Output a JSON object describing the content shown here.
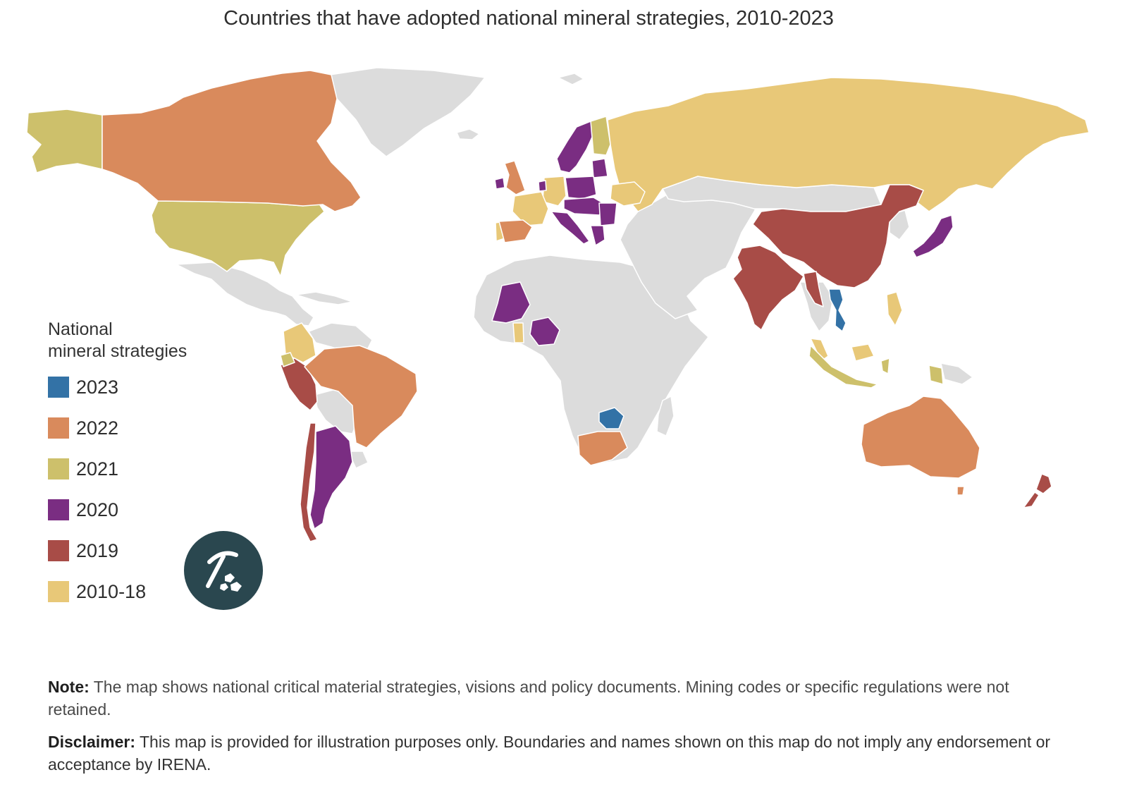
{
  "title": "Countries that have adopted national mineral strategies, 2010-2023",
  "legend": {
    "title_line1": "National",
    "title_line2": "mineral strategies",
    "items": [
      {
        "label": "2023",
        "color": "#3372a6"
      },
      {
        "label": "2022",
        "color": "#d98a5c"
      },
      {
        "label": "2021",
        "color": "#cdc06b"
      },
      {
        "label": "2020",
        "color": "#7a2d82"
      },
      {
        "label": "2019",
        "color": "#a84c47"
      },
      {
        "label": "2010-18",
        "color": "#e8c878"
      }
    ]
  },
  "map_colors": {
    "no_strategy": "#dcdcdc",
    "border": "#ffffff"
  },
  "map_regions": {
    "2023": [
      "Viet Nam",
      "Zimbabwe"
    ],
    "2022": [
      "Canada",
      "United Kingdom",
      "Spain",
      "Brazil",
      "South Africa",
      "Australia"
    ],
    "2021": [
      "Alaska (United States)",
      "United States",
      "Finland",
      "Ecuador",
      "Indonesia",
      "Papua New Guinea"
    ],
    "2020": [
      "Norway",
      "Sweden",
      "Ireland",
      "Netherlands",
      "Baltic states",
      "Poland",
      "Czechia",
      "Slovakia",
      "Hungary",
      "Austria",
      "Italy",
      "Croatia",
      "Romania",
      "Bulgaria",
      "Greece",
      "Mali",
      "Nigeria",
      "Argentina",
      "Japan"
    ],
    "2019": [
      "Peru",
      "Chile",
      "China",
      "India",
      "Myanmar",
      "New Zealand"
    ],
    "2010-18": [
      "Russia",
      "Ukraine",
      "Germany",
      "France",
      "Portugal",
      "Colombia",
      "Ghana",
      "Malaysia",
      "Philippines"
    ]
  },
  "badge_icon": "pickaxe-minerals-icon",
  "note": {
    "label": "Note:",
    "text": " The map shows national critical material strategies, visions and policy documents. Mining codes or specific regulations were not retained."
  },
  "disclaimer": {
    "label": "Disclaimer:",
    "text": " This map is provided for illustration purposes only. Boundaries and names shown on this map do not imply any endorsement or acceptance by IRENA."
  }
}
